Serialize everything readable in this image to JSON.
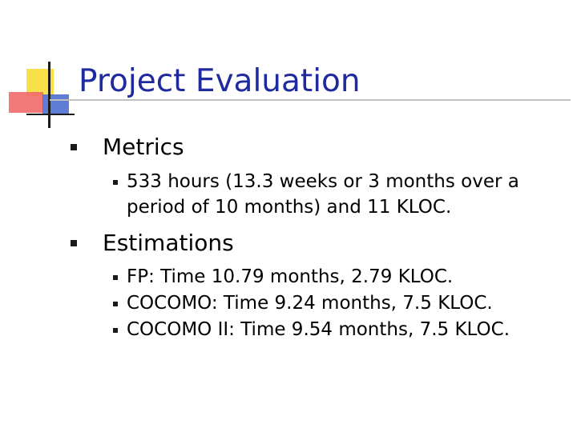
{
  "title": "Project Evaluation",
  "sections": [
    {
      "heading": "Metrics",
      "items": [
        {
          "line1": "533 hours (13.3 weeks or 3 months over a",
          "line2": "period of 10 months) and 11 KLOC."
        }
      ]
    },
    {
      "heading": "Estimations",
      "items": [
        {
          "text": "FP: Time 10.79 months, 2.79 KLOC."
        },
        {
          "text": "COCOMO: Time 9.24 months, 7.5 KLOC."
        },
        {
          "text": "COCOMO II: Time 9.54 months, 7.5 KLOC."
        }
      ]
    }
  ],
  "colors": {
    "title": "#1f2a9e",
    "text": "#000000",
    "bullet": "#1a1a1a"
  }
}
